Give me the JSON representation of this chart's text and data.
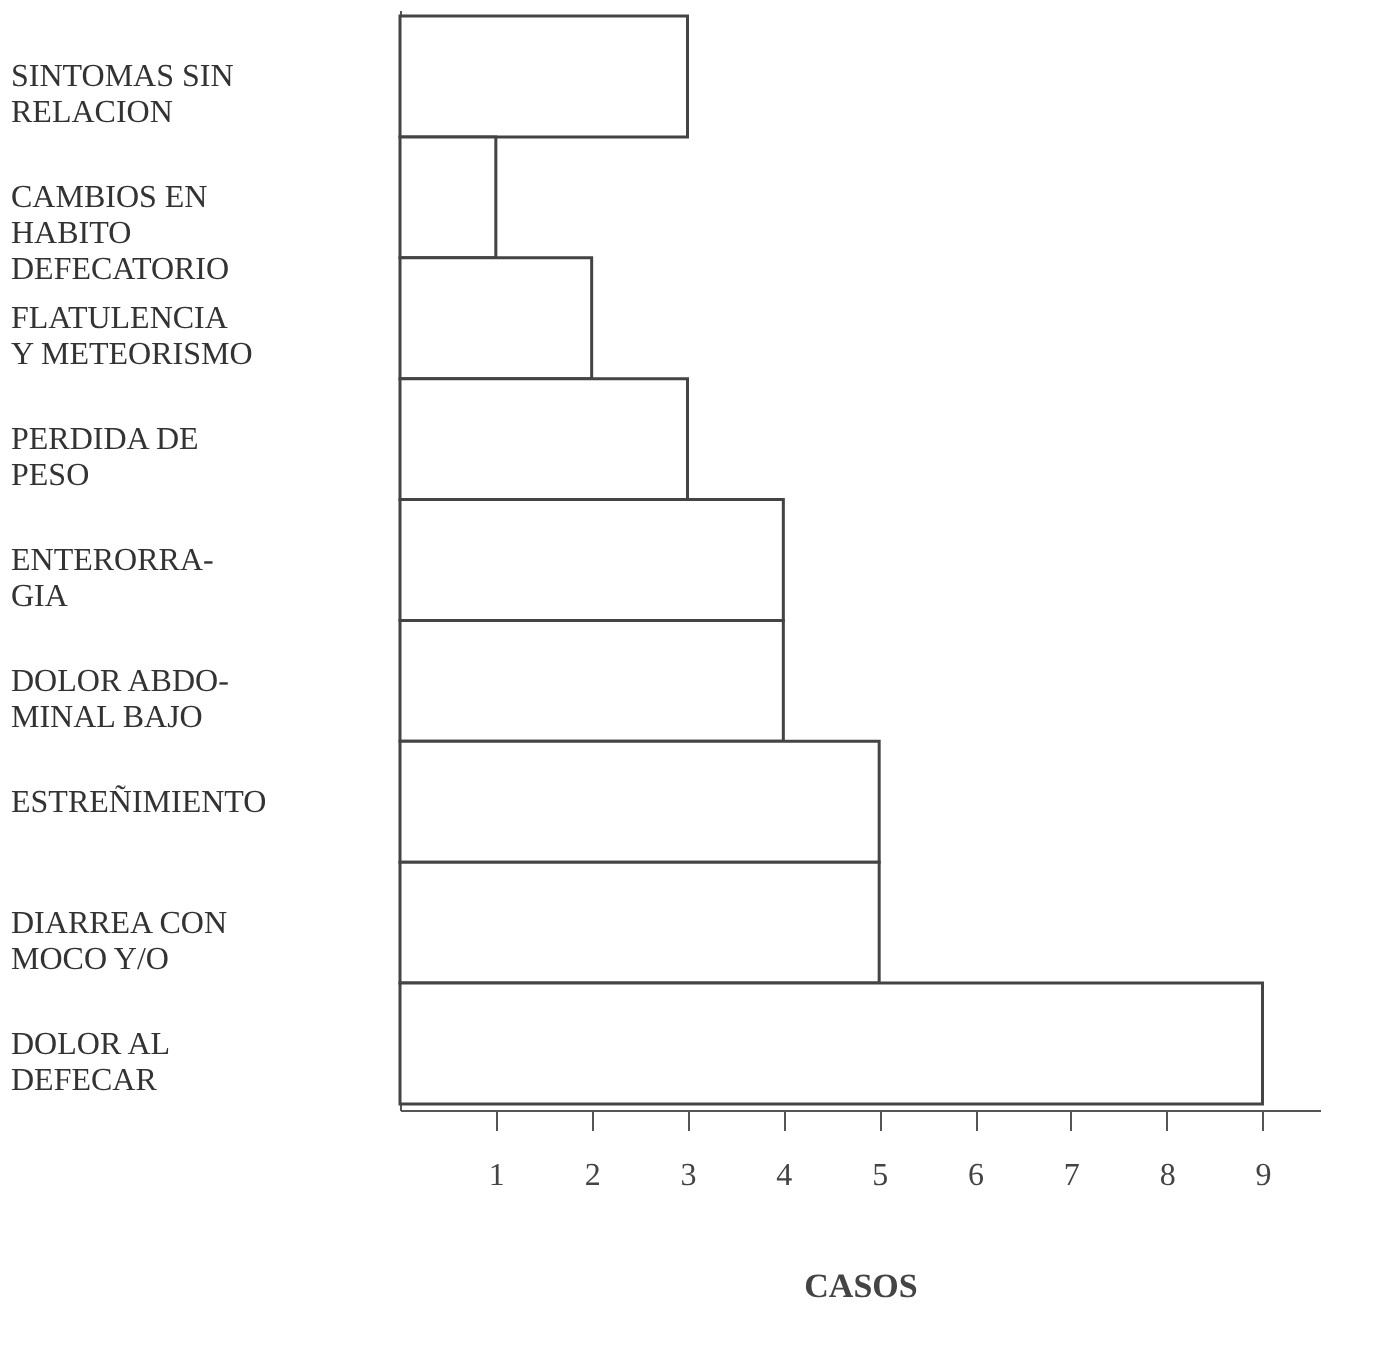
{
  "chart_data": {
    "type": "bar",
    "orientation": "horizontal",
    "xlabel": "CASOS",
    "categories": [
      "SINTOMAS SIN\nRELACION",
      "CAMBIOS EN\nHABITO\nDEFECATORIO",
      "FLATULENCIA\nY METEORISMO",
      "PERDIDA DE\nPESO",
      "ENTERORRA-\nGIA",
      "DOLOR ABDO-\nMINAL BAJO",
      "ESTREÑIMIENTO",
      "DIARREA CON\nMOCO Y/O",
      "DOLOR AL\nDEFECAR"
    ],
    "values": [
      3,
      1,
      2,
      3,
      4,
      4,
      5,
      5,
      9
    ],
    "color": "#ffffff",
    "xlim": [
      0,
      9.6
    ],
    "xticks": [
      1,
      2,
      3,
      4,
      5,
      6,
      7,
      8,
      9
    ],
    "grid": false
  }
}
